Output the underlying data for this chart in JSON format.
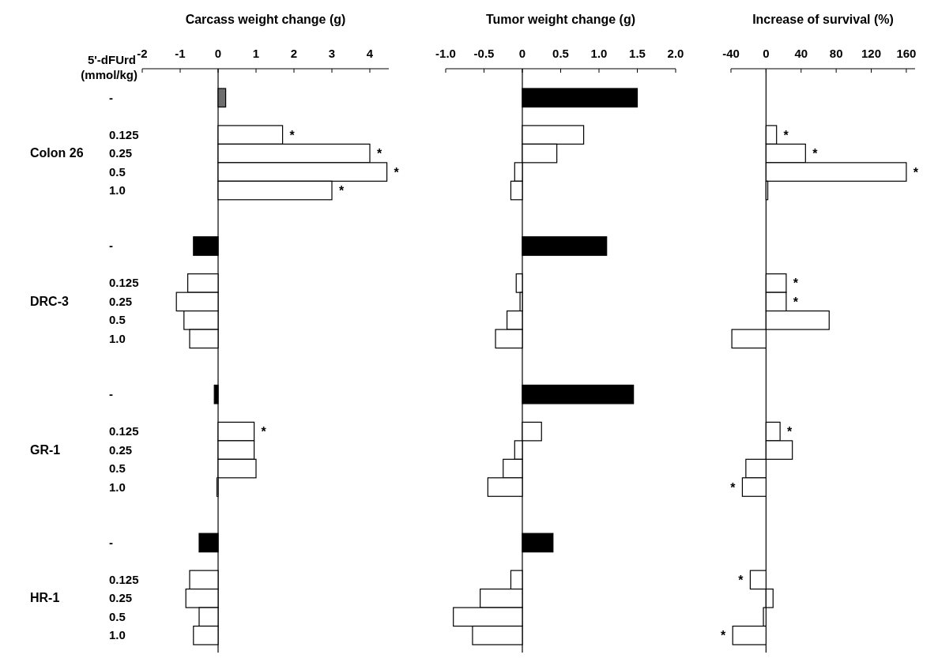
{
  "chart_data": [
    {
      "type": "bar",
      "orientation": "horizontal",
      "xlabel": "Carcass  weight change (g)",
      "ylabel": "5'-dFUrd (mmol/kg)",
      "categories": [
        "-",
        null,
        "0.125",
        "0.25",
        "0.5",
        "1.0",
        null,
        null,
        "-",
        null,
        "0.125",
        "0.25",
        "0.5",
        "1.0",
        null,
        null,
        "-",
        null,
        "0.125",
        "0.25",
        "0.5",
        "1.0",
        null,
        null,
        "-",
        null,
        "0.125",
        "0.25",
        "0.5",
        "1.0"
      ],
      "values": [
        0.2,
        null,
        1.7,
        4.0,
        4.45,
        3.0,
        null,
        null,
        -0.65,
        null,
        -0.8,
        -1.1,
        -0.9,
        -0.75,
        null,
        null,
        -0.1,
        null,
        0.95,
        0.95,
        1.0,
        -0.03,
        null,
        null,
        -0.5,
        null,
        -0.75,
        -0.85,
        -0.5,
        -0.65
      ],
      "colors": [
        "#6e6e6e",
        null,
        "#ffffff",
        "#ffffff",
        "#ffffff",
        "#ffffff",
        null,
        null,
        "#000000",
        null,
        "#ffffff",
        "#ffffff",
        "#ffffff",
        "#ffffff",
        null,
        null,
        "#000000",
        null,
        "#ffffff",
        "#ffffff",
        "#ffffff",
        "#ffffff",
        null,
        null,
        "#000000",
        null,
        "#ffffff",
        "#ffffff",
        "#ffffff",
        "#ffffff"
      ],
      "value_labels": [
        null,
        null,
        "*",
        "*",
        "*",
        "*",
        null,
        null,
        null,
        null,
        null,
        null,
        null,
        null,
        null,
        null,
        null,
        null,
        "*",
        null,
        null,
        null,
        null,
        null,
        null,
        null,
        null,
        null,
        null,
        null
      ],
      "xlim": [
        -2,
        4.5
      ],
      "xticks": [
        -2,
        -1,
        0,
        1,
        2,
        3,
        4
      ],
      "annotations": [
        "Colon 26",
        "DRC-3",
        "GR-1",
        "HR-1"
      ]
    },
    {
      "type": "bar",
      "orientation": "horizontal",
      "xlabel": "Tumor weight change (g)",
      "tick_labels": "x",
      "categories": [
        null,
        null,
        null,
        null,
        null,
        null,
        null,
        null,
        null,
        null,
        null,
        null,
        null,
        null,
        null,
        null,
        null,
        null,
        null,
        null,
        null,
        null,
        null,
        null,
        null,
        null,
        null,
        null,
        null,
        null
      ],
      "values": [
        1.5,
        null,
        0.8,
        0.45,
        -0.1,
        -0.15,
        null,
        null,
        1.1,
        null,
        -0.08,
        -0.03,
        -0.2,
        -0.35,
        null,
        null,
        1.45,
        null,
        0.25,
        -0.1,
        -0.25,
        -0.45,
        null,
        null,
        0.4,
        null,
        -0.15,
        -0.55,
        -0.9,
        -0.65
      ],
      "colors": [
        "#000000",
        null,
        "#ffffff",
        "#ffffff",
        "#ffffff",
        "#ffffff",
        null,
        null,
        "#000000",
        null,
        "#ffffff",
        "#ffffff",
        "#ffffff",
        "#ffffff",
        null,
        null,
        "#000000",
        null,
        "#ffffff",
        "#ffffff",
        "#ffffff",
        "#ffffff",
        null,
        null,
        "#000000",
        null,
        "#ffffff",
        "#ffffff",
        "#ffffff",
        "#ffffff"
      ],
      "xlim": [
        -1,
        2
      ],
      "xticks": [
        {
          "value": -1,
          "label": "-1.0"
        },
        -0.5,
        0,
        0.5,
        {
          "value": 1,
          "label": "1.0"
        },
        1.5,
        {
          "value": 2,
          "label": "2.0"
        }
      ]
    },
    {
      "type": "bar",
      "orientation": "horizontal",
      "xlabel": "Increase of survival (%)",
      "tick_labels": "x",
      "categories": [
        null,
        null,
        null,
        null,
        null,
        null,
        null,
        null,
        null,
        null,
        null,
        null,
        null,
        null,
        null,
        null,
        null,
        null,
        null,
        null,
        null,
        null,
        null,
        null,
        null,
        null,
        null,
        null,
        null,
        null
      ],
      "values": [
        null,
        null,
        12,
        45,
        160,
        2,
        null,
        null,
        null,
        null,
        23,
        23,
        72,
        -39,
        null,
        null,
        null,
        null,
        16,
        30,
        -23,
        -27,
        null,
        null,
        null,
        null,
        -18,
        8,
        -3,
        -38
      ],
      "colors": [
        null,
        null,
        "#ffffff",
        "#ffffff",
        "#ffffff",
        "#ffffff",
        null,
        null,
        null,
        null,
        "#ffffff",
        "#ffffff",
        "#ffffff",
        "#ffffff",
        null,
        null,
        null,
        null,
        "#ffffff",
        "#ffffff",
        "#ffffff",
        "#ffffff",
        null,
        null,
        null,
        null,
        "#ffffff",
        "#ffffff",
        "#ffffff",
        "#ffffff"
      ],
      "value_labels": [
        null,
        null,
        "*",
        "*",
        "*",
        null,
        null,
        null,
        null,
        null,
        "*",
        "*",
        null,
        null,
        null,
        null,
        null,
        null,
        "*",
        null,
        null,
        "*",
        null,
        null,
        null,
        null,
        "*",
        null,
        null,
        "*"
      ],
      "xlim": [
        -40,
        170
      ],
      "xticks": [
        -40,
        0,
        40,
        80,
        120,
        160
      ]
    }
  ]
}
